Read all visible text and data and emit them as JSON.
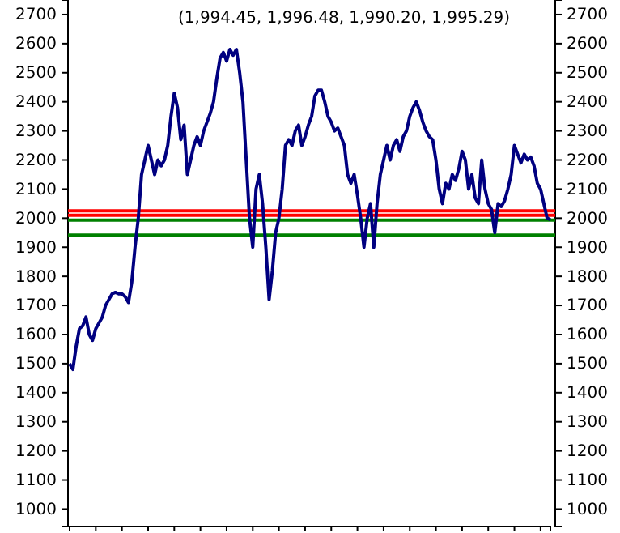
{
  "chart_data": {
    "type": "line",
    "title": "(1,994.45, 1,996.48, 1,990.20, 1,995.29)",
    "categories": [
      null,
      null,
      null,
      null,
      null,
      null,
      null,
      null,
      null,
      null,
      null,
      null,
      null,
      null,
      null,
      null,
      null,
      null,
      null,
      null,
      null,
      null,
      null,
      null,
      null,
      null,
      null,
      null,
      null,
      null,
      null,
      null,
      null,
      null,
      null,
      null,
      null,
      null,
      null,
      null,
      null,
      null,
      null,
      null,
      null,
      null,
      null,
      null,
      null,
      null,
      null,
      null,
      null,
      null,
      null,
      null,
      null,
      null,
      null,
      null,
      null,
      null,
      null,
      null,
      null,
      null,
      null,
      null,
      null,
      null,
      null,
      null,
      null,
      null,
      null,
      null,
      null,
      null,
      null,
      null,
      null,
      null,
      null,
      null,
      null,
      null,
      null,
      null,
      null,
      null,
      null,
      null,
      null,
      null,
      null,
      null,
      null,
      null,
      null,
      null,
      null,
      null,
      null,
      null,
      null,
      null,
      null,
      null,
      null,
      null,
      null,
      null,
      null,
      null,
      null,
      null,
      null,
      null,
      null,
      null,
      null,
      null,
      null,
      null,
      null,
      null,
      null,
      null,
      null,
      null,
      null,
      null,
      null,
      null,
      null,
      null,
      null,
      null,
      null,
      null,
      null,
      null,
      null,
      null,
      null,
      null,
      null,
      null
    ],
    "series": [
      {
        "color": "#000080",
        "values": [
          1500,
          1480,
          1560,
          1620,
          1630,
          1660,
          1600,
          1580,
          1620,
          1640,
          1660,
          1700,
          1720,
          1740,
          1745,
          1740,
          1740,
          1730,
          1710,
          1780,
          1900,
          2000,
          2150,
          2200,
          2250,
          2200,
          2150,
          2200,
          2180,
          2200,
          2250,
          2350,
          2430,
          2380,
          2270,
          2320,
          2150,
          2200,
          2250,
          2280,
          2250,
          2300,
          2330,
          2360,
          2400,
          2480,
          2550,
          2570,
          2540,
          2580,
          2560,
          2580,
          2500,
          2400,
          2200,
          2000,
          1900,
          2100,
          2150,
          2050,
          1900,
          1720,
          1820,
          1950,
          2000,
          2100,
          2250,
          2270,
          2250,
          2300,
          2320,
          2250,
          2280,
          2320,
          2350,
          2420,
          2440,
          2440,
          2400,
          2350,
          2330,
          2300,
          2310,
          2280,
          2250,
          2150,
          2120,
          2150,
          2080,
          2000,
          1900,
          2000,
          2050,
          1900,
          2050,
          2150,
          2200,
          2250,
          2200,
          2250,
          2270,
          2230,
          2280,
          2300,
          2350,
          2380,
          2400,
          2370,
          2330,
          2300,
          2280,
          2270,
          2200,
          2100,
          2050,
          2120,
          2100,
          2150,
          2130,
          2170,
          2230,
          2200,
          2100,
          2150,
          2070,
          2050,
          2200,
          2100,
          2050,
          2030,
          1950,
          2050,
          2040,
          2060,
          2100,
          2150,
          2250,
          2220,
          2190,
          2220,
          2200,
          2210,
          2180,
          2120,
          2100,
          2050,
          2000,
          1995
        ]
      }
    ],
    "ylim": [
      940,
      2750
    ],
    "yticks": [
      1000,
      1100,
      1200,
      1300,
      1400,
      1500,
      1600,
      1700,
      1800,
      1900,
      2000,
      2100,
      2200,
      2300,
      2400,
      2500,
      2600,
      2700
    ],
    "y2lim": [
      940,
      2750
    ],
    "y2ticks": [
      1000,
      1100,
      1200,
      1300,
      1400,
      1500,
      1600,
      1700,
      1800,
      1900,
      2000,
      2100,
      2200,
      2300,
      2400,
      2500,
      2600,
      2700
    ],
    "ref_lines": [
      {
        "axis": "y",
        "value": 2025,
        "color": "#ff0000"
      },
      {
        "axis": "y",
        "value": 2010,
        "color": "#ff0000"
      },
      {
        "axis": "y",
        "value": 1993,
        "color": "#008000"
      },
      {
        "axis": "y",
        "value": 1942,
        "color": "#008000"
      }
    ],
    "grid": false
  }
}
